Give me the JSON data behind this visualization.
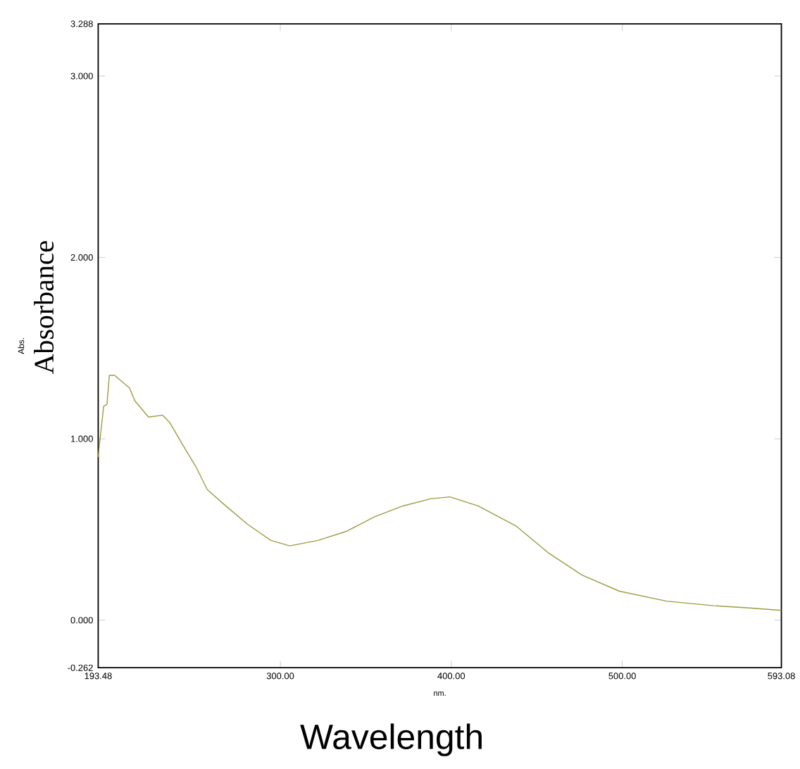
{
  "chart_data": {
    "type": "line",
    "xlabel": "nm.",
    "ylabel": "Absorbance",
    "annotations": [
      "Abs.",
      "Wavelength"
    ],
    "x": [
      193.48,
      194.0,
      196.7,
      198.6,
      200.0,
      203.1,
      211.8,
      214.9,
      222.9,
      231.2,
      235.3,
      242.1,
      250.4,
      257.3,
      266.9,
      280.7,
      294.5,
      305.5,
      322.1,
      338.6,
      355.1,
      371.7,
      388.2,
      399.2,
      415.7,
      437.8,
      457.0,
      476.3,
      498.3,
      525.9,
      553.5,
      575.5,
      593.0
    ],
    "series": [
      {
        "color": "#9c9c44",
        "values": [
          0.9,
          0.95,
          1.18,
          1.19,
          1.35,
          1.35,
          1.28,
          1.21,
          1.12,
          1.13,
          1.09,
          0.98,
          0.85,
          0.72,
          0.64,
          0.53,
          0.44,
          0.41,
          0.44,
          0.49,
          0.57,
          0.63,
          0.67,
          0.68,
          0.63,
          0.52,
          0.37,
          0.25,
          0.16,
          0.105,
          0.08,
          0.067,
          0.054
        ]
      }
    ],
    "xlim": [
      193.48,
      593.08
    ],
    "xticks": [
      193.48,
      {
        "value": 300,
        "label": "300.00"
      },
      {
        "value": 400,
        "label": "400.00"
      },
      {
        "value": 500,
        "label": "500.00"
      },
      593.08
    ],
    "ylim": [
      -0.262,
      3.288
    ],
    "yticks": [
      -0.262,
      {
        "value": 0,
        "label": "0.000"
      },
      {
        "value": 1,
        "label": "1.000"
      },
      {
        "value": 2,
        "label": "2.000"
      },
      {
        "value": 3,
        "label": "3.000"
      },
      3.288
    ],
    "grid": false,
    "marker": "none",
    "line_style": "solid"
  }
}
